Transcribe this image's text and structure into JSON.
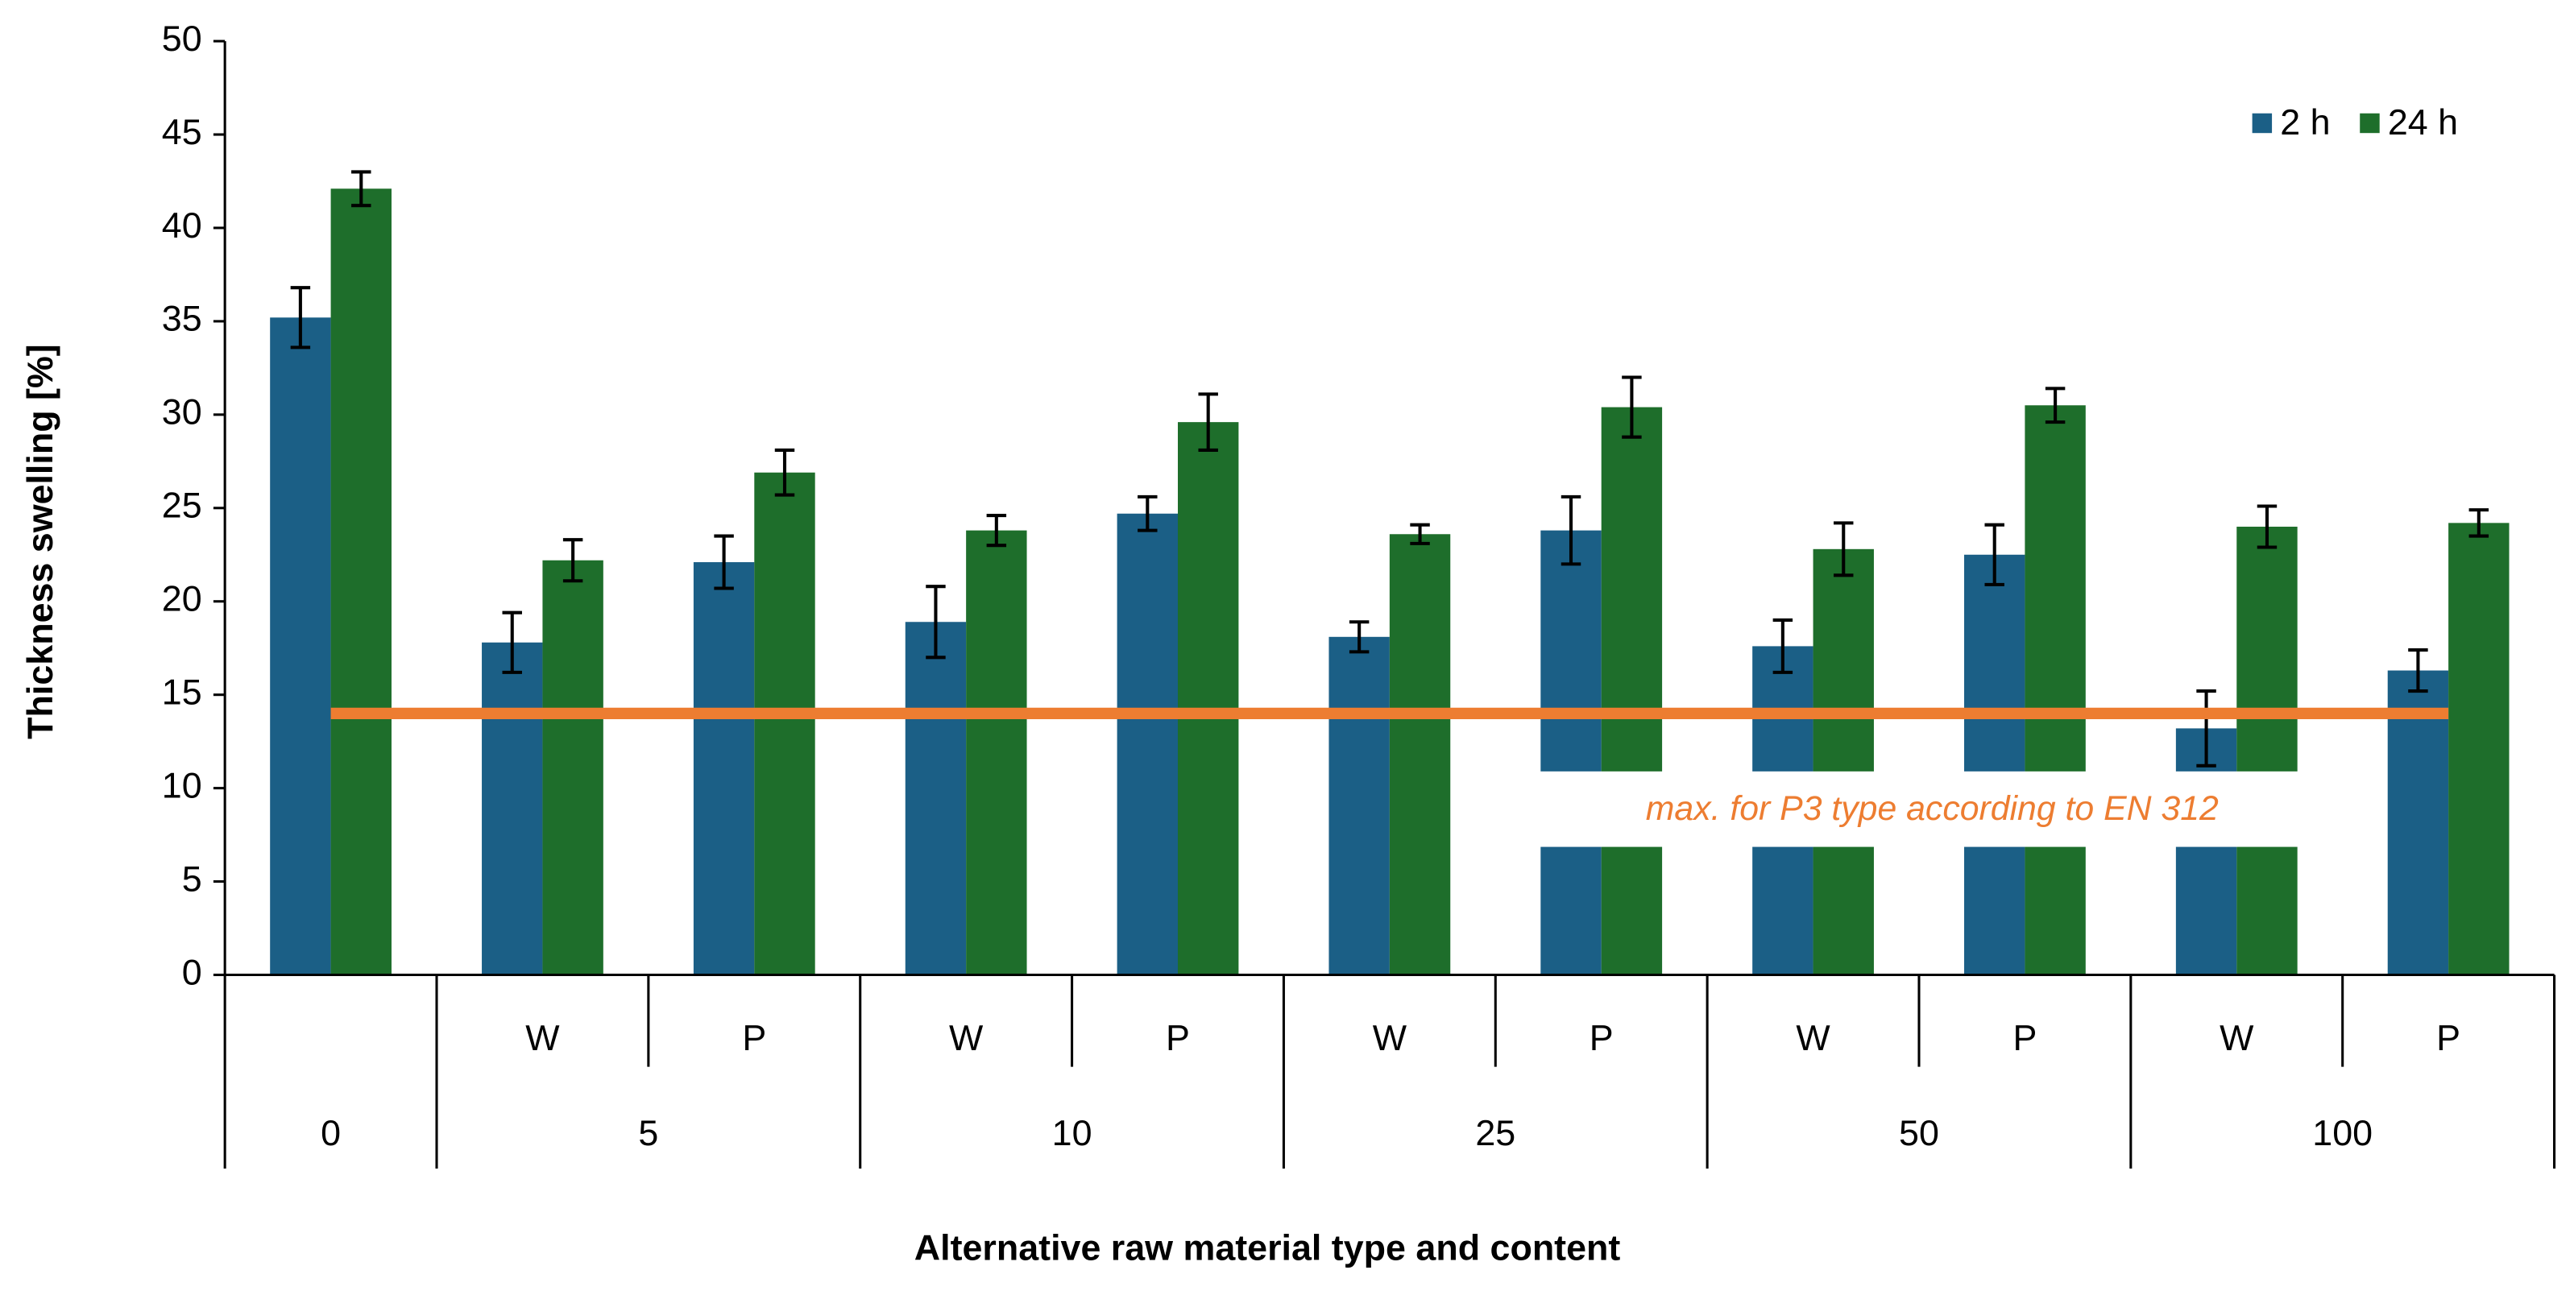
{
  "chart_data": {
    "type": "bar",
    "y_label": "Thickness swelling [%]",
    "x_label": "Alternative raw material type and content",
    "categories": [
      [
        "0",
        null
      ],
      [
        "5",
        "W"
      ],
      [
        "5",
        "P"
      ],
      [
        "10",
        "W"
      ],
      [
        "10",
        "P"
      ],
      [
        "25",
        "W"
      ],
      [
        "25",
        "P"
      ],
      [
        "50",
        "W"
      ],
      [
        "50",
        "P"
      ],
      [
        "100",
        "W"
      ],
      [
        "100",
        "P"
      ]
    ],
    "series": [
      {
        "name": "2 h",
        "color": "#1b5f86",
        "values": [
          35.2,
          17.8,
          22.1,
          18.9,
          24.7,
          18.1,
          23.8,
          17.6,
          22.5,
          13.2,
          16.3
        ],
        "errors": [
          1.6,
          1.6,
          1.4,
          1.9,
          0.9,
          0.8,
          1.8,
          1.4,
          1.6,
          2.0,
          1.1
        ]
      },
      {
        "name": "24 h",
        "color": "#1e6e2b",
        "values": [
          42.1,
          22.2,
          26.9,
          23.8,
          29.6,
          23.6,
          30.4,
          22.8,
          30.5,
          24.0,
          24.2
        ],
        "errors": [
          0.9,
          1.1,
          1.2,
          0.8,
          1.5,
          0.5,
          1.6,
          1.4,
          0.9,
          1.1,
          0.7
        ]
      }
    ],
    "reference_line": {
      "value": 14,
      "label": "max. for P3 type according to EN 312",
      "color": "#ed7d31"
    },
    "ylim": [
      0,
      50
    ],
    "yticks": [
      0,
      5,
      10,
      15,
      20,
      25,
      30,
      35,
      40,
      45,
      50
    ],
    "legend": "top-right"
  }
}
